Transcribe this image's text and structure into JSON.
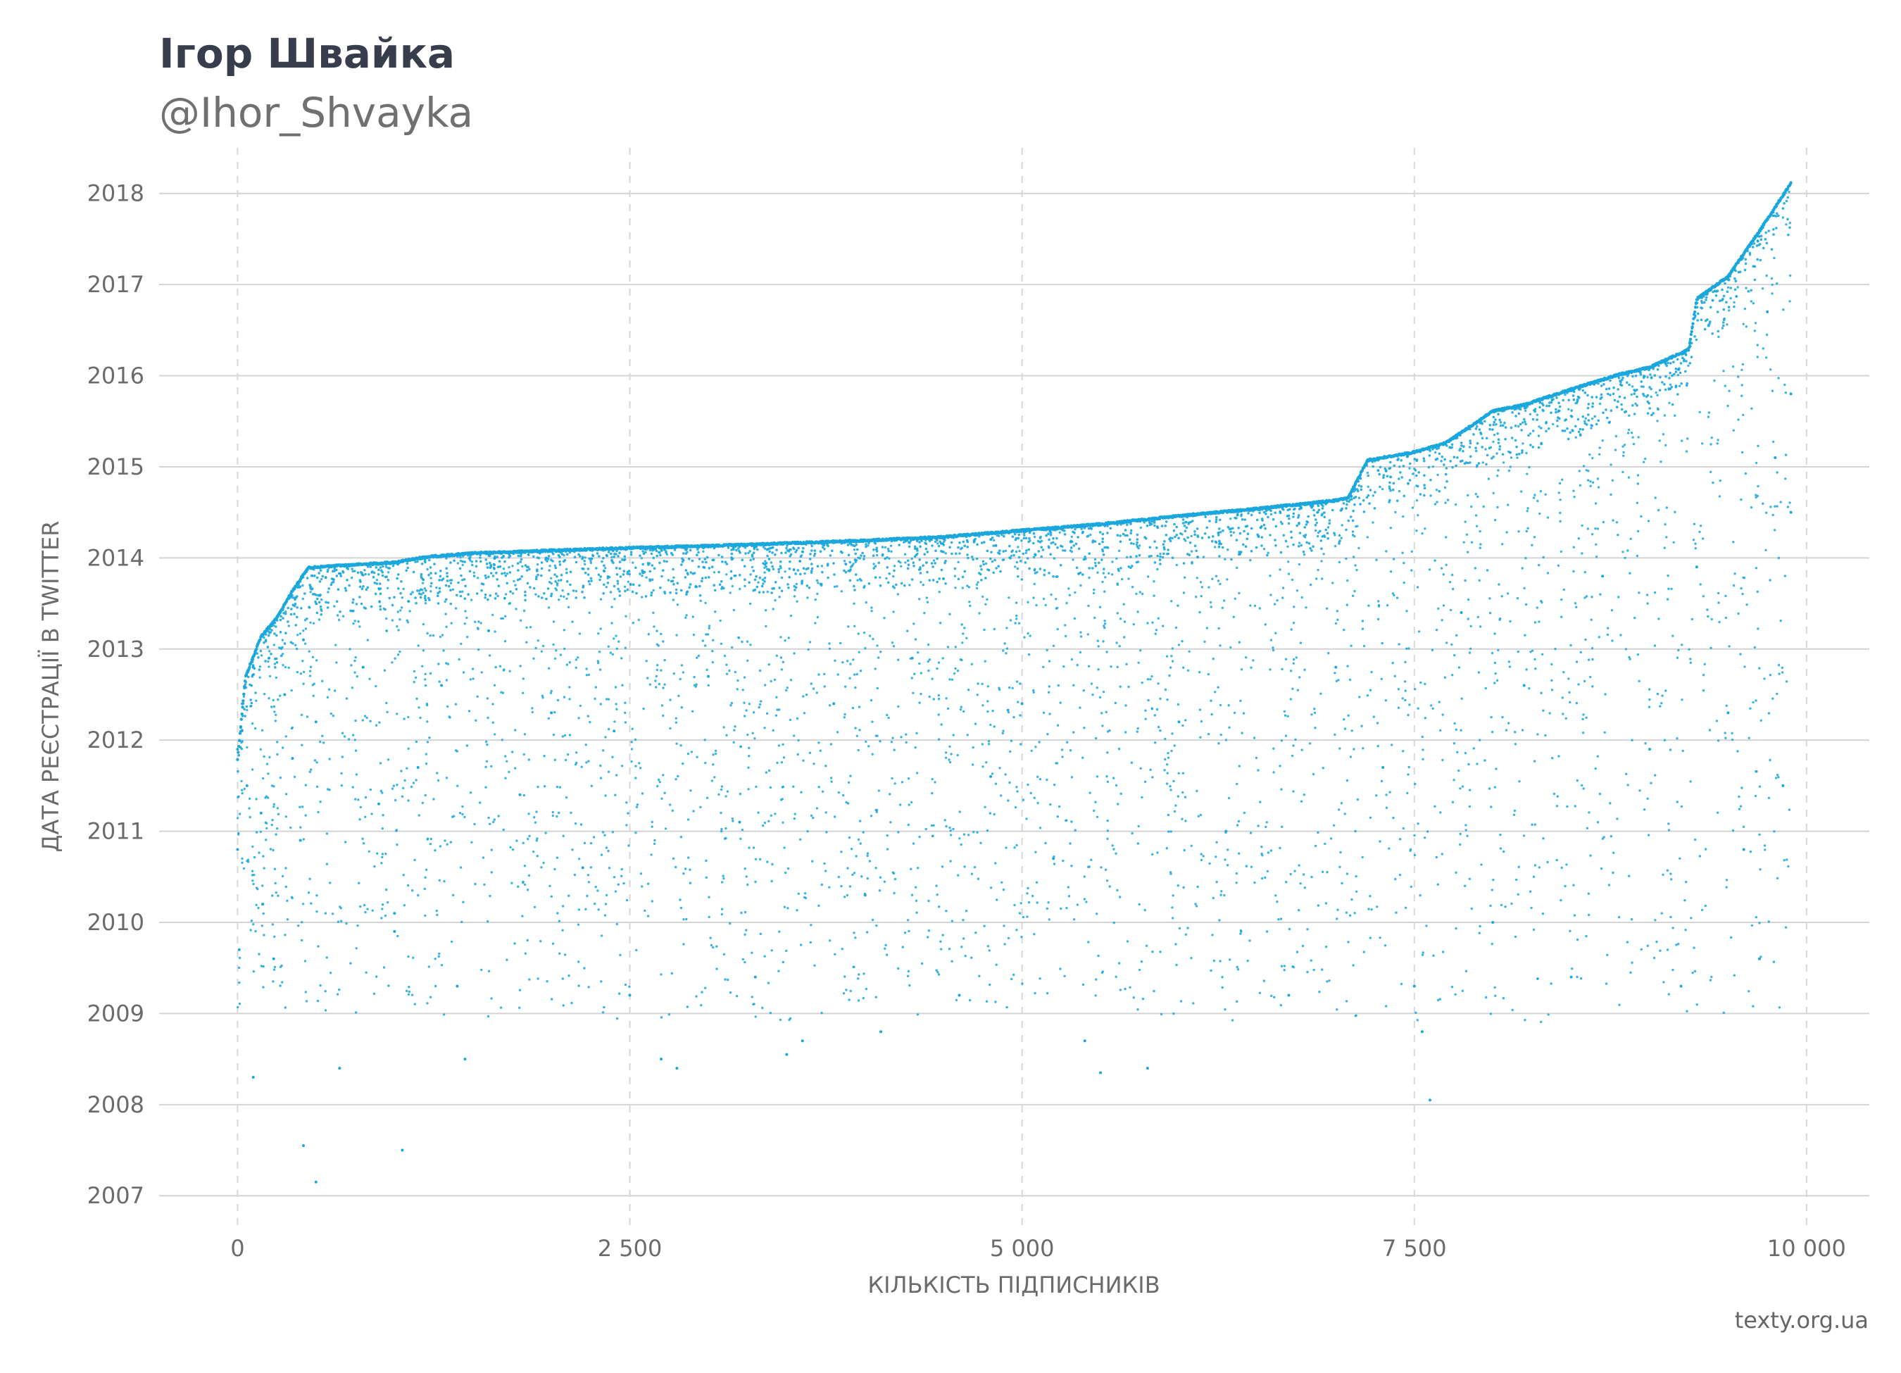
{
  "header": {
    "title": "Ігор Швайка",
    "subtitle": "@Ihor_Shvayka"
  },
  "footer": {
    "source": "texty.org.ua"
  },
  "chart_data": {
    "type": "scatter",
    "title": "Ігор Швайка",
    "subtitle": "@Ihor_Shvayka",
    "xlabel": "КІЛЬКІСТЬ ПІДПИСНИКІВ",
    "ylabel": "ДАТА РЕЄСТРАЦІЇ В TWITTER",
    "xlim": [
      -500,
      10400
    ],
    "ylim": [
      2006.6,
      2018.5
    ],
    "x_ticks": [
      0,
      2500,
      5000,
      7500,
      10000
    ],
    "x_tick_labels": [
      "0",
      "2 500",
      "5 000",
      "7 500",
      "10 000"
    ],
    "y_ticks": [
      2007,
      2008,
      2009,
      2010,
      2011,
      2012,
      2013,
      2014,
      2015,
      2016,
      2017,
      2018
    ],
    "y_tick_labels": [
      "2007",
      "2008",
      "2009",
      "2010",
      "2011",
      "2012",
      "2013",
      "2014",
      "2015",
      "2016",
      "2017",
      "2018"
    ],
    "grid": {
      "horizontal": "solid",
      "vertical": "dashed"
    },
    "marker_color": "#1aa7dd",
    "series": [
      {
        "frontier": [
          [
            0,
            2011.8
          ],
          [
            50,
            2012.7
          ],
          [
            150,
            2013.15
          ],
          [
            250,
            2013.35
          ],
          [
            350,
            2013.65
          ],
          [
            450,
            2013.9
          ],
          [
            600,
            2013.92
          ],
          [
            1000,
            2013.96
          ],
          [
            1200,
            2014.02
          ],
          [
            1500,
            2014.06
          ],
          [
            2000,
            2014.09
          ],
          [
            2500,
            2014.12
          ],
          [
            3000,
            2014.14
          ],
          [
            4000,
            2014.2
          ],
          [
            4500,
            2014.24
          ],
          [
            5000,
            2014.31
          ],
          [
            5500,
            2014.38
          ],
          [
            6000,
            2014.47
          ],
          [
            6500,
            2014.55
          ],
          [
            7000,
            2014.64
          ],
          [
            7080,
            2014.67
          ],
          [
            7200,
            2015.08
          ],
          [
            7500,
            2015.17
          ],
          [
            7700,
            2015.27
          ],
          [
            8000,
            2015.62
          ],
          [
            8200,
            2015.69
          ],
          [
            8500,
            2015.86
          ],
          [
            8800,
            2016.02
          ],
          [
            9000,
            2016.1
          ],
          [
            9250,
            2016.3
          ],
          [
            9300,
            2016.85
          ],
          [
            9500,
            2017.1
          ],
          [
            9700,
            2017.6
          ],
          [
            9900,
            2018.12
          ]
        ],
        "points": [
          [
            0,
            2011.9
          ],
          [
            0,
            2010.8
          ],
          [
            10,
            2009.7
          ],
          [
            30,
            2012.4
          ],
          [
            60,
            2011.5
          ],
          [
            100,
            2012.8
          ],
          [
            100,
            2008.3
          ],
          [
            150,
            2011.2
          ],
          [
            160,
            2010.2
          ],
          [
            200,
            2012.9
          ],
          [
            230,
            2009.6
          ],
          [
            300,
            2012.5
          ],
          [
            350,
            2011.8
          ],
          [
            400,
            2010.9
          ],
          [
            420,
            2013.1
          ],
          [
            420,
            2007.55
          ],
          [
            500,
            2007.15
          ],
          [
            500,
            2012.2
          ],
          [
            650,
            2008.4
          ],
          [
            800,
            2012.8
          ],
          [
            900,
            2011.3
          ],
          [
            1000,
            2010.1
          ],
          [
            1000,
            2009.9
          ],
          [
            1050,
            2007.5
          ],
          [
            1150,
            2011.7
          ],
          [
            1300,
            2012.6
          ],
          [
            1400,
            2009.3
          ],
          [
            1450,
            2008.5
          ],
          [
            1600,
            2013.2
          ],
          [
            1800,
            2011.4
          ],
          [
            2000,
            2012.3
          ],
          [
            2200,
            2010.6
          ],
          [
            2400,
            2012.1
          ],
          [
            2500,
            2009.2
          ],
          [
            2700,
            2008.5
          ],
          [
            2800,
            2008.4
          ],
          [
            3000,
            2012.7
          ],
          [
            3200,
            2011.1
          ],
          [
            3300,
            2009.4
          ],
          [
            3500,
            2008.55
          ],
          [
            3600,
            2008.7
          ],
          [
            3800,
            2012.4
          ],
          [
            4000,
            2010.3
          ],
          [
            4100,
            2008.8
          ],
          [
            4300,
            2012.9
          ],
          [
            4600,
            2009.2
          ],
          [
            4800,
            2011.6
          ],
          [
            5000,
            2012.4
          ],
          [
            5200,
            2010.7
          ],
          [
            5400,
            2008.7
          ],
          [
            5500,
            2008.35
          ],
          [
            5800,
            2008.4
          ],
          [
            6000,
            2012.2
          ],
          [
            6300,
            2011.0
          ],
          [
            6700,
            2009.2
          ],
          [
            7000,
            2012.8
          ],
          [
            7300,
            2011.7
          ],
          [
            7500,
            2009.3
          ],
          [
            7550,
            2008.8
          ],
          [
            7600,
            2008.05
          ],
          [
            7800,
            2013.4
          ],
          [
            8000,
            2010.0
          ],
          [
            8200,
            2012.6
          ],
          [
            8500,
            2009.4
          ],
          [
            8700,
            2013.8
          ],
          [
            9000,
            2011.9
          ],
          [
            9200,
            2009.3
          ],
          [
            9300,
            2013.9
          ],
          [
            9500,
            2012.3
          ],
          [
            9600,
            2010.8
          ],
          [
            9700,
            2009.6
          ],
          [
            9800,
            2015.1
          ],
          [
            9850,
            2011.5
          ],
          [
            9900,
            2015.8
          ],
          [
            9900,
            2014.5
          ],
          [
            9750,
            2016.7
          ]
        ]
      }
    ]
  }
}
